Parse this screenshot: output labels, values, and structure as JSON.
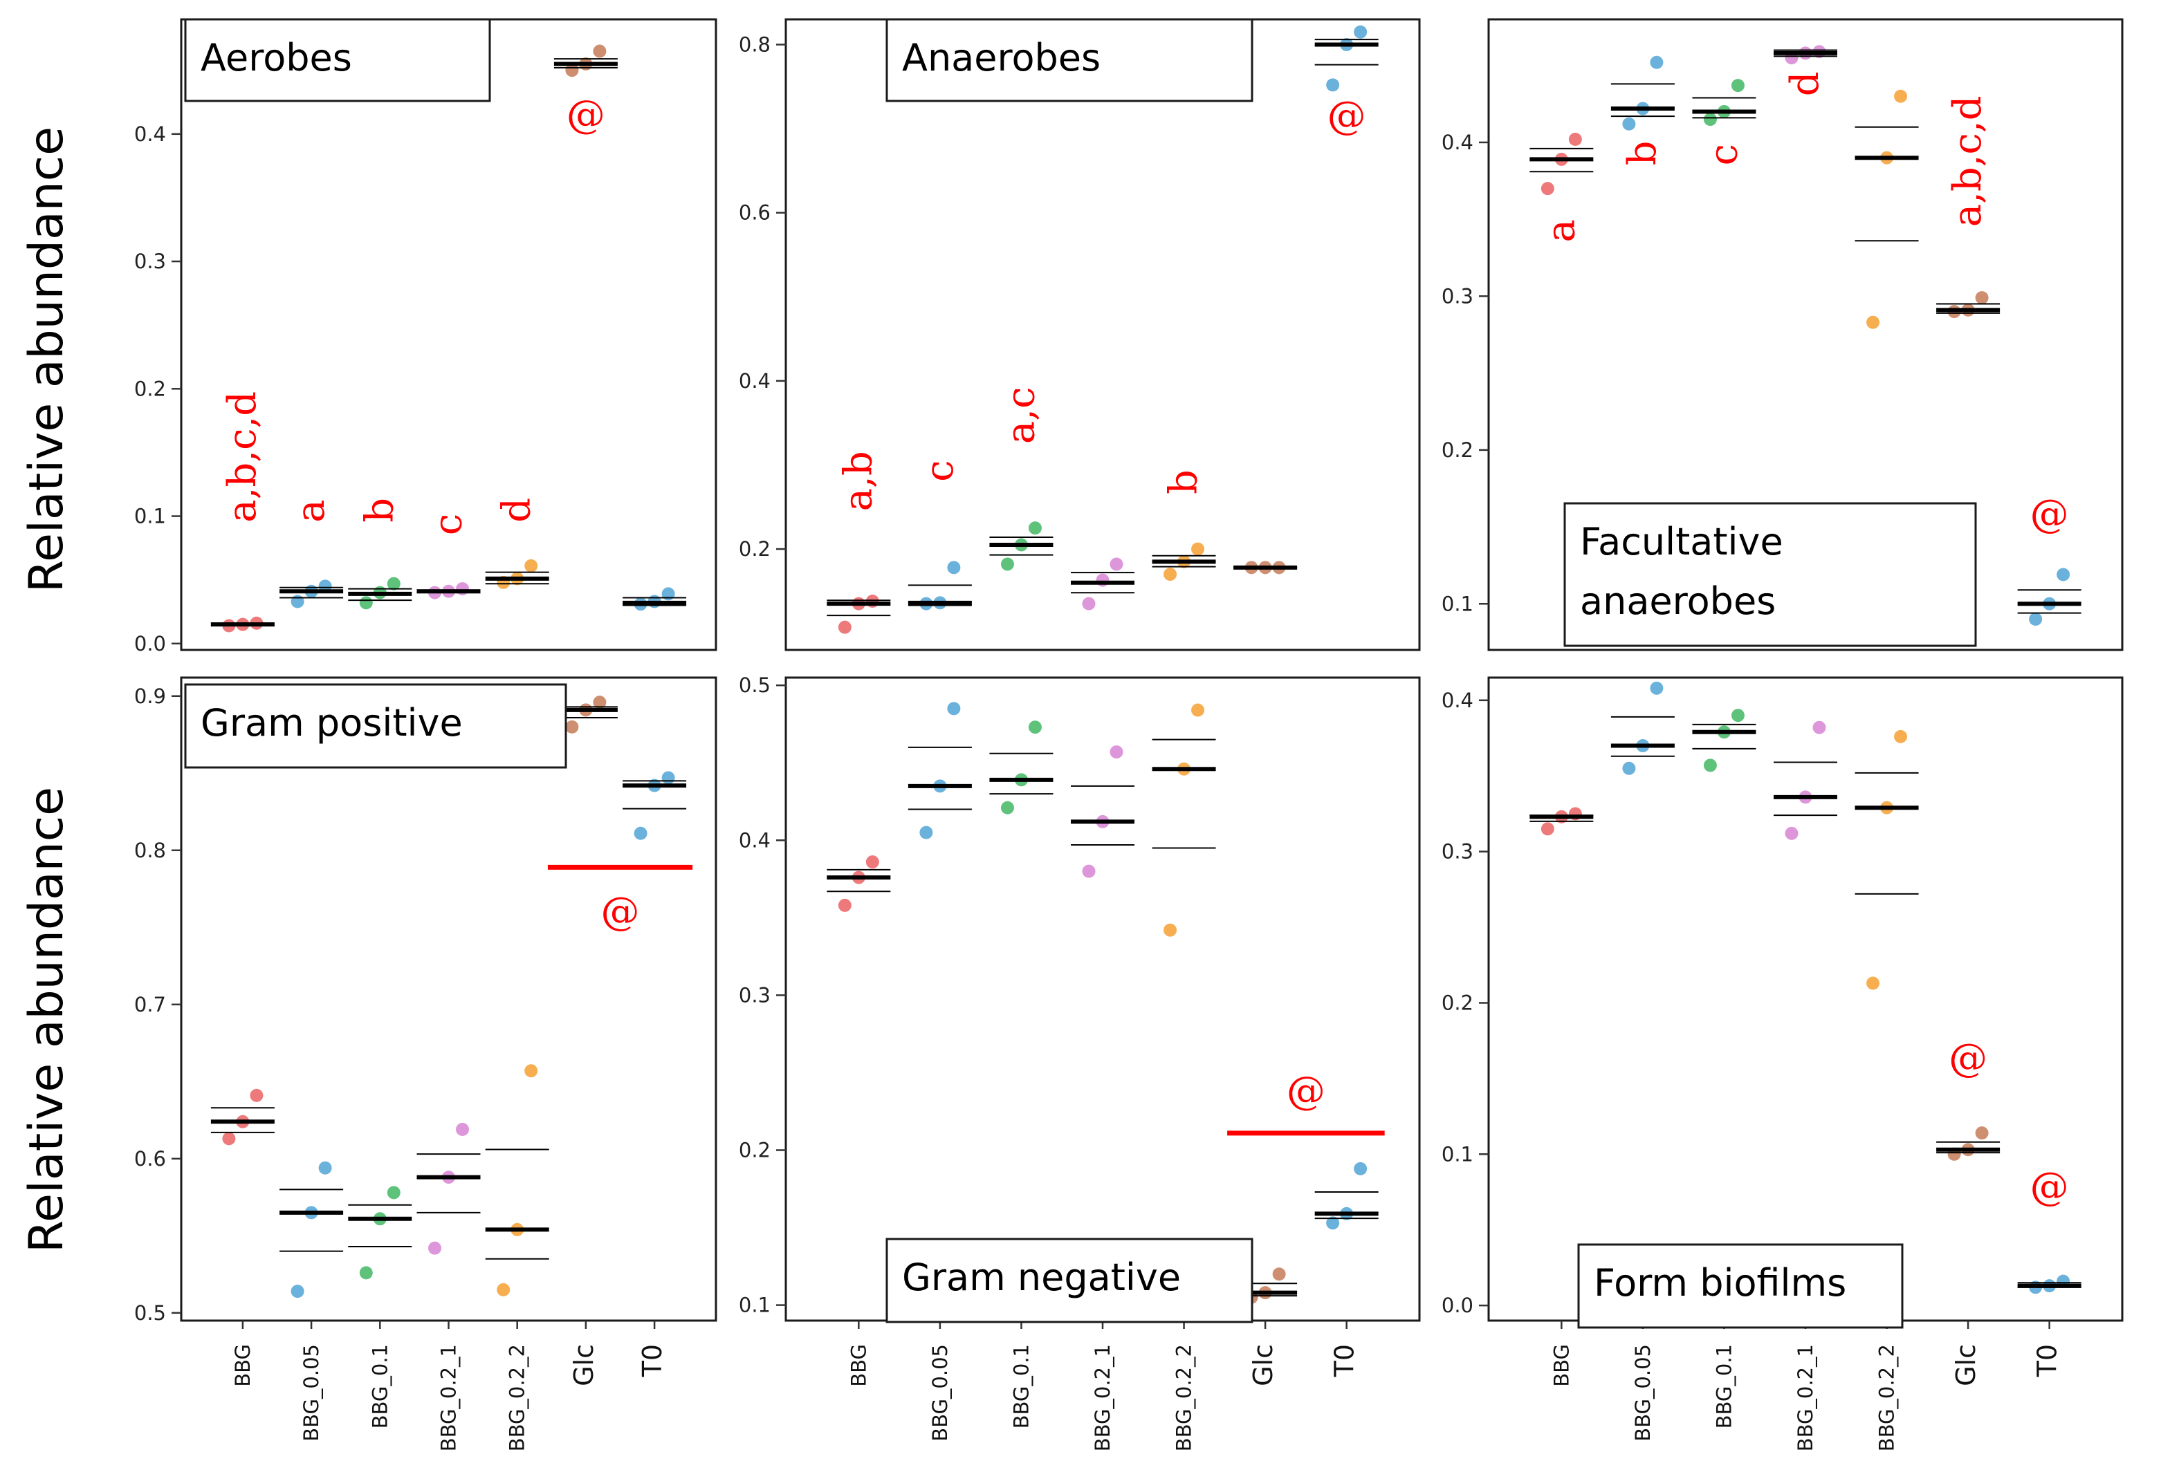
{
  "figure": {
    "ylabel_top": "Relative abundance",
    "ylabel_bottom": "Relative abundance"
  },
  "colors": {
    "BBG": "#ec6a6d",
    "BBG_0.05": "#5aa8d8",
    "BBG_0.1": "#4cbb6c",
    "BBG_0.2_1": "#d98bd6",
    "BBG_0.2_2": "#f6a53e",
    "Glc": "#c98361",
    "T0": "#5aa8d8",
    "annotation": "#ff0000"
  },
  "chart_data": [
    {
      "type": "scatter",
      "title": "Aerobes",
      "ylabel": "Relative abundance",
      "ylim": [
        -0.005,
        0.49
      ],
      "yticks": [
        0.0,
        0.1,
        0.2,
        0.3,
        0.4
      ],
      "ytick_labels": [
        "0.0",
        "0.1",
        "0.2",
        "0.3",
        "0.4"
      ],
      "categories": [
        "BBG",
        "BBG_0.05",
        "BBG_0.1",
        "BBG_0.2_1",
        "BBG_0.2_2",
        "Glc",
        "T0"
      ],
      "show_x_labels": false,
      "points": [
        [
          0.014,
          0.015,
          0.016
        ],
        [
          0.033,
          0.041,
          0.045
        ],
        [
          0.032,
          0.04,
          0.047
        ],
        [
          0.04,
          0.041,
          0.043
        ],
        [
          0.048,
          0.051,
          0.061
        ],
        [
          0.45,
          0.455,
          0.465
        ],
        [
          0.031,
          0.033,
          0.039
        ]
      ],
      "means": [
        0.015,
        0.041,
        0.039,
        0.041,
        0.051,
        0.455,
        0.032
      ],
      "ci": [
        [
          0.014,
          0.016
        ],
        [
          0.036,
          0.044
        ],
        [
          0.034,
          0.043
        ],
        [
          0.04,
          0.042
        ],
        [
          0.047,
          0.056
        ],
        [
          0.452,
          0.459
        ],
        [
          0.03,
          0.036
        ]
      ],
      "annotations": [
        {
          "category": "BBG",
          "text": "a,b,c,d",
          "y": 0.095,
          "rotate": true
        },
        {
          "category": "BBG_0.05",
          "text": "a",
          "y": 0.095,
          "rotate": true
        },
        {
          "category": "BBG_0.1",
          "text": "b",
          "y": 0.095,
          "rotate": true
        },
        {
          "category": "BBG_0.2_1",
          "text": "c",
          "y": 0.085,
          "rotate": true
        },
        {
          "category": "BBG_0.2_2",
          "text": "d",
          "y": 0.095,
          "rotate": true
        },
        {
          "category": "Glc",
          "text": "@",
          "y": 0.405,
          "rotate": false
        }
      ]
    },
    {
      "type": "scatter",
      "title": "Anaerobes",
      "ylabel": "",
      "ylim": [
        0.08,
        0.83
      ],
      "yticks": [
        0.2,
        0.4,
        0.6,
        0.8
      ],
      "ytick_labels": [
        "0.2",
        "0.4",
        "0.6",
        "0.8"
      ],
      "categories": [
        "BBG",
        "BBG_0.05",
        "BBG_0.1",
        "BBG_0.2_1",
        "BBG_0.2_2",
        "Glc",
        "T0"
      ],
      "show_x_labels": false,
      "points": [
        [
          0.107,
          0.135,
          0.138
        ],
        [
          0.135,
          0.136,
          0.178
        ],
        [
          0.182,
          0.205,
          0.225
        ],
        [
          0.135,
          0.163,
          0.182
        ],
        [
          0.17,
          0.185,
          0.2
        ],
        [
          0.178,
          0.178,
          0.178
        ],
        [
          0.752,
          0.8,
          0.815
        ]
      ],
      "means": [
        0.135,
        0.136,
        0.205,
        0.16,
        0.185,
        0.178,
        0.8
      ],
      "ci": [
        [
          0.121,
          0.139
        ],
        [
          0.133,
          0.157
        ],
        [
          0.193,
          0.214
        ],
        [
          0.148,
          0.172
        ],
        [
          0.179,
          0.192
        ],
        [
          0.178,
          0.178
        ],
        [
          0.776,
          0.806
        ]
      ],
      "annotations": [
        {
          "category": "BBG",
          "text": "a,b",
          "y": 0.245,
          "rotate": true
        },
        {
          "category": "BBG_0.05",
          "text": "c",
          "y": 0.28,
          "rotate": true
        },
        {
          "category": "BBG_0.1",
          "text": "a,c",
          "y": 0.325,
          "rotate": true
        },
        {
          "category": "BBG_0.2_2",
          "text": "b",
          "y": 0.265,
          "rotate": true
        },
        {
          "category": "T0",
          "text": "@",
          "y": 0.7,
          "rotate": false
        }
      ]
    },
    {
      "type": "scatter",
      "title": "Facultative anaerobes",
      "title_lines": [
        "Facultative",
        "anaerobes"
      ],
      "ylabel": "",
      "ylim": [
        0.07,
        0.48
      ],
      "yticks": [
        0.1,
        0.2,
        0.3,
        0.4
      ],
      "ytick_labels": [
        "0.1",
        "0.2",
        "0.3",
        "0.4"
      ],
      "categories": [
        "BBG",
        "BBG_0.05",
        "BBG_0.1",
        "BBG_0.2_1",
        "BBG_0.2_2",
        "Glc",
        "T0"
      ],
      "show_x_labels": false,
      "points": [
        [
          0.37,
          0.389,
          0.402
        ],
        [
          0.412,
          0.422,
          0.452
        ],
        [
          0.415,
          0.42,
          0.437
        ],
        [
          0.455,
          0.458,
          0.459
        ],
        [
          0.283,
          0.39,
          0.43
        ],
        [
          0.29,
          0.291,
          0.299
        ],
        [
          0.09,
          0.1,
          0.119
        ]
      ],
      "means": [
        0.389,
        0.422,
        0.42,
        0.458,
        0.39,
        0.291,
        0.1
      ],
      "ci": [
        [
          0.381,
          0.396
        ],
        [
          0.417,
          0.438
        ],
        [
          0.416,
          0.429
        ],
        [
          0.456,
          0.46
        ],
        [
          0.336,
          0.41
        ],
        [
          0.289,
          0.295
        ],
        [
          0.094,
          0.109
        ]
      ],
      "annotations": [
        {
          "category": "BBG",
          "text": "a",
          "y": 0.335,
          "rotate": true
        },
        {
          "category": "BBG_0.05",
          "text": "b",
          "y": 0.385,
          "rotate": true
        },
        {
          "category": "BBG_0.1",
          "text": "c",
          "y": 0.385,
          "rotate": true
        },
        {
          "category": "BBG_0.2_1",
          "text": "d",
          "y": 0.43,
          "rotate": true
        },
        {
          "category": "Glc",
          "text": "a,b,c,d",
          "y": 0.345,
          "rotate": true
        },
        {
          "category": "T0",
          "text": "@",
          "y": 0.15,
          "rotate": false
        }
      ]
    },
    {
      "type": "scatter",
      "title": "Gram positive",
      "ylabel": "Relative abundance",
      "ylim": [
        0.495,
        0.912
      ],
      "yticks": [
        0.5,
        0.6,
        0.7,
        0.8,
        0.9
      ],
      "ytick_labels": [
        "0.5",
        "0.6",
        "0.7",
        "0.8",
        "0.9"
      ],
      "categories": [
        "BBG",
        "BBG_0.05",
        "BBG_0.1",
        "BBG_0.2_1",
        "BBG_0.2_2",
        "Glc",
        "T0"
      ],
      "show_x_labels": true,
      "points": [
        [
          0.613,
          0.624,
          0.641
        ],
        [
          0.514,
          0.565,
          0.594
        ],
        [
          0.526,
          0.561,
          0.578
        ],
        [
          0.542,
          0.588,
          0.619
        ],
        [
          0.515,
          0.554,
          0.657
        ],
        [
          0.88,
          0.891,
          0.896
        ],
        [
          0.811,
          0.842,
          0.847
        ]
      ],
      "means": [
        0.624,
        0.565,
        0.561,
        0.588,
        0.554,
        0.891,
        0.842
      ],
      "ci": [
        [
          0.617,
          0.633
        ],
        [
          0.54,
          0.58
        ],
        [
          0.543,
          0.57
        ],
        [
          0.565,
          0.603
        ],
        [
          0.535,
          0.606
        ],
        [
          0.886,
          0.893
        ],
        [
          0.827,
          0.845
        ]
      ],
      "annotations": [
        {
          "category": "Glc",
          "text": "@",
          "y": 0.752,
          "rotate": false,
          "x_between": [
            "Glc",
            "T0"
          ],
          "bar_y": 0.789
        }
      ]
    },
    {
      "type": "scatter",
      "title": "Gram negative",
      "ylabel": "",
      "ylim": [
        0.09,
        0.505
      ],
      "yticks": [
        0.1,
        0.2,
        0.3,
        0.4,
        0.5
      ],
      "ytick_labels": [
        "0.1",
        "0.2",
        "0.3",
        "0.4",
        "0.5"
      ],
      "categories": [
        "BBG",
        "BBG_0.05",
        "BBG_0.1",
        "BBG_0.2_1",
        "BBG_0.2_2",
        "Glc",
        "T0"
      ],
      "show_x_labels": true,
      "points": [
        [
          0.358,
          0.376,
          0.386
        ],
        [
          0.405,
          0.435,
          0.485
        ],
        [
          0.421,
          0.439,
          0.473
        ],
        [
          0.38,
          0.412,
          0.457
        ],
        [
          0.342,
          0.446,
          0.484
        ],
        [
          0.105,
          0.108,
          0.12
        ],
        [
          0.153,
          0.159,
          0.188
        ]
      ],
      "means": [
        0.376,
        0.435,
        0.439,
        0.412,
        0.446,
        0.108,
        0.159
      ],
      "ci": [
        [
          0.367,
          0.381
        ],
        [
          0.42,
          0.46
        ],
        [
          0.43,
          0.456
        ],
        [
          0.397,
          0.435
        ],
        [
          0.395,
          0.465
        ],
        [
          0.106,
          0.114
        ],
        [
          0.156,
          0.173
        ]
      ],
      "annotations": [
        {
          "category": "Glc",
          "text": "@",
          "y": 0.23,
          "rotate": false,
          "x_between": [
            "Glc",
            "T0"
          ],
          "bar_y": 0.211
        }
      ]
    },
    {
      "type": "scatter",
      "title": "Form biofilms",
      "ylabel": "",
      "ylim": [
        -0.01,
        0.415
      ],
      "yticks": [
        0.0,
        0.1,
        0.2,
        0.3,
        0.4
      ],
      "ytick_labels": [
        "0.0",
        "0.1",
        "0.2",
        "0.3",
        "0.4"
      ],
      "categories": [
        "BBG",
        "BBG_0.05",
        "BBG_0.1",
        "BBG_0.2_1",
        "BBG_0.2_2",
        "Glc",
        "T0"
      ],
      "show_x_labels": true,
      "points": [
        [
          0.315,
          0.323,
          0.325
        ],
        [
          0.355,
          0.37,
          0.408
        ],
        [
          0.357,
          0.379,
          0.39
        ],
        [
          0.312,
          0.336,
          0.382
        ],
        [
          0.213,
          0.329,
          0.376
        ],
        [
          0.1,
          0.103,
          0.114
        ],
        [
          0.012,
          0.013,
          0.016
        ]
      ],
      "means": [
        0.323,
        0.37,
        0.379,
        0.336,
        0.329,
        0.103,
        0.013
      ],
      "ci": [
        [
          0.32,
          0.324
        ],
        [
          0.363,
          0.389
        ],
        [
          0.368,
          0.384
        ],
        [
          0.324,
          0.359
        ],
        [
          0.272,
          0.352
        ],
        [
          0.101,
          0.108
        ],
        [
          0.012,
          0.015
        ]
      ],
      "annotations": [
        {
          "category": "Glc",
          "text": "@",
          "y": 0.155,
          "rotate": false
        },
        {
          "category": "T0",
          "text": "@",
          "y": 0.07,
          "rotate": false
        }
      ]
    }
  ]
}
